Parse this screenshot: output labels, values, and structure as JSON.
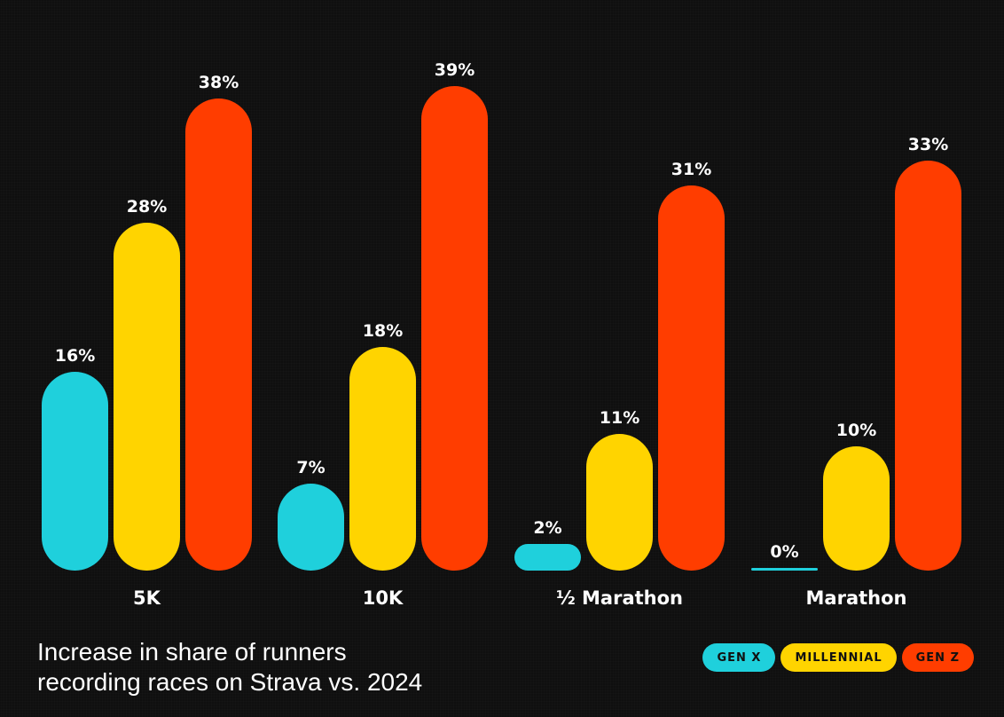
{
  "chart_data": {
    "type": "bar",
    "categories": [
      "5K",
      "10K",
      "½ Marathon",
      "Marathon"
    ],
    "series": [
      {
        "name": "GEN X",
        "color": "#1fd0dc",
        "values": [
          16,
          7,
          2,
          0
        ],
        "labels": [
          "16%",
          "7%",
          "2%",
          "0%"
        ]
      },
      {
        "name": "MILLENNIAL",
        "color": "#ffd400",
        "values": [
          28,
          18,
          11,
          10
        ],
        "labels": [
          "28%",
          "18%",
          "11%",
          "10%"
        ]
      },
      {
        "name": "GEN Z",
        "color": "#ff3d00",
        "values": [
          38,
          39,
          31,
          33
        ],
        "labels": [
          "38%",
          "39%",
          "31%",
          "33%"
        ]
      }
    ],
    "ylim": [
      0,
      39
    ],
    "title": "Increase in share of runners recording races on Strava vs. 2024",
    "legend_position": "bottom-right",
    "grid": false
  },
  "caption": {
    "line1": "Increase in share of runners",
    "line2": "recording races on Strava vs. 2024"
  },
  "legend": {
    "items": [
      {
        "label": "GEN X",
        "color": "#1fd0dc"
      },
      {
        "label": "MILLENNIAL",
        "color": "#ffd400"
      },
      {
        "label": "GEN Z",
        "color": "#ff3d00"
      }
    ]
  }
}
